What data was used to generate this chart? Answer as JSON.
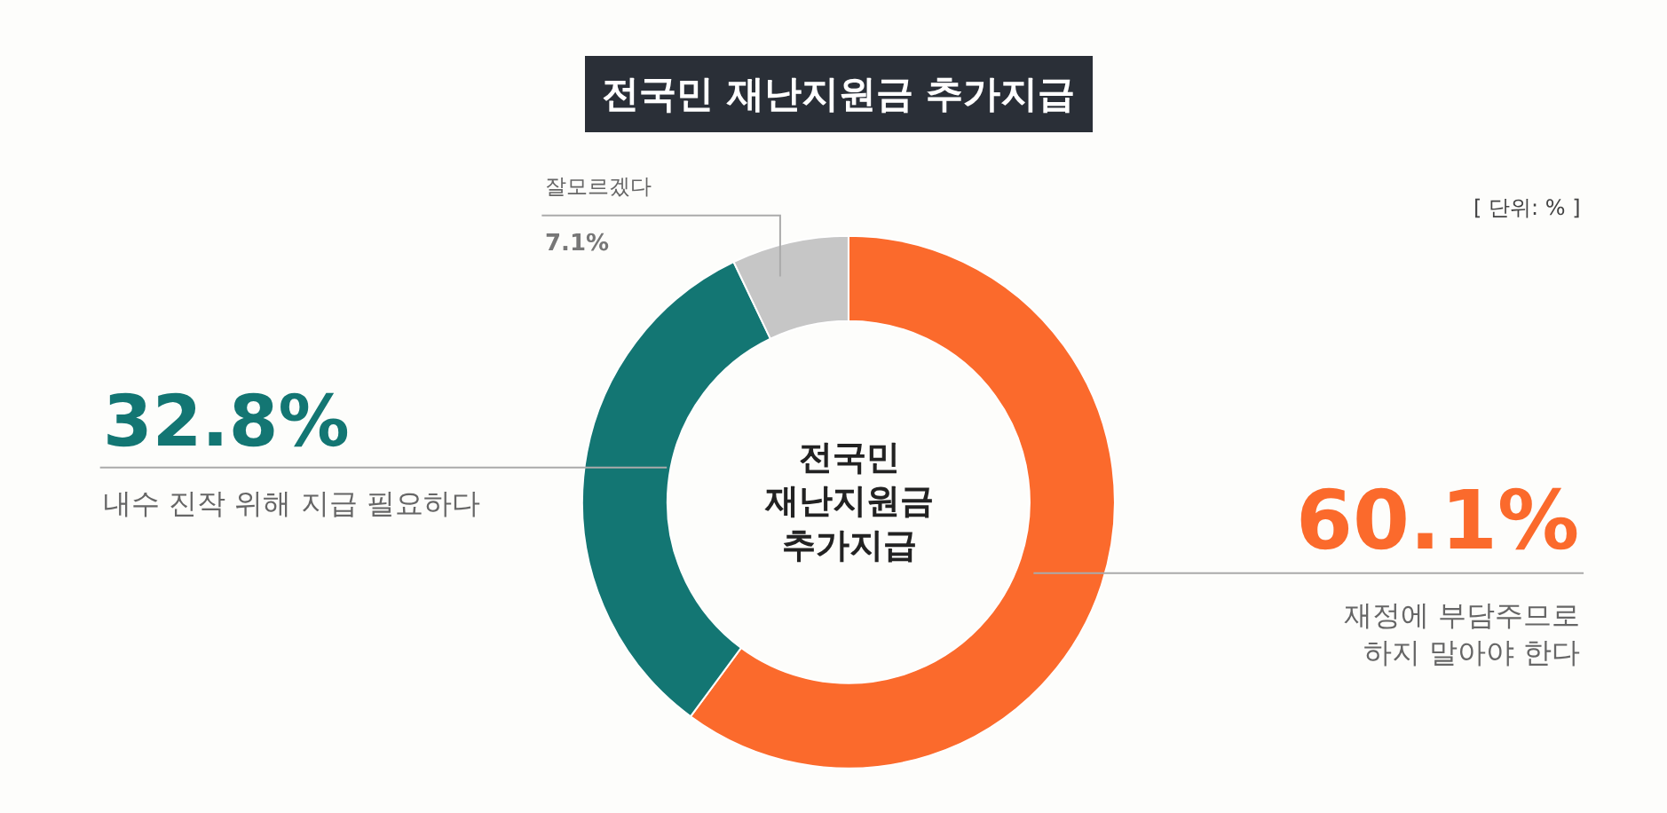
{
  "chart_data": {
    "type": "donut",
    "title": "전국민 재난지원금 추가지급",
    "categories": [
      "재정에 부담주므로\n하지 말아야 한다",
      "내수 진작 위해 지급 필요하다",
      "잘모르겠다"
    ],
    "values": [
      60.1,
      32.8,
      7.1
    ],
    "colors": [
      "#fb6a2c",
      "#137673",
      "#c6c6c6"
    ],
    "value_labels": [
      "60.1%",
      "32.8%",
      "7.1%"
    ],
    "annotations": [
      "[ 단위: % ]",
      "전국민\n재난지원금\n추가지급"
    ]
  }
}
